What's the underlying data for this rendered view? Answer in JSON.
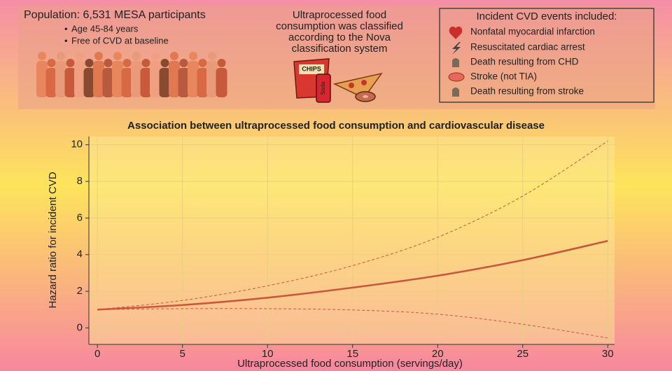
{
  "header": {
    "population": {
      "title": "Population: 6,531 MESA participants",
      "bullets": [
        "Age 45-84 years",
        "Free of CVD at baseline"
      ]
    },
    "classification": {
      "lines": [
        "Ultraprocessed food",
        "consumption was classified",
        "according to the Nova",
        "classification system"
      ]
    },
    "illustration_labels": [
      "CHIPS",
      "Soda"
    ],
    "events": {
      "title": "Incident CVD events included:",
      "items": [
        "Nonfatal myocardial infarction",
        "Resuscitated cardiac arrest",
        "Death resulting from CHD",
        "Stroke (not TIA)",
        "Death resulting from stroke"
      ]
    }
  },
  "chart_data": {
    "type": "line",
    "title": "Association between ultraprocessed food consumption and cardiovascular disease",
    "x_label": "Ultraprocessed food consumption (servings/day)",
    "y_label": "Hazard ratio for incident CVD",
    "x": [
      0,
      5,
      10,
      15,
      20,
      25,
      30
    ],
    "series": [
      {
        "color": "#c9573f",
        "style": "solid",
        "values": [
          1.0,
          1.25,
          1.65,
          2.2,
          2.85,
          3.7,
          4.75
        ]
      },
      {
        "color": "#c9573f",
        "style": "dashed",
        "values": [
          1.0,
          1.5,
          2.3,
          3.4,
          4.95,
          7.2,
          10.2
        ]
      },
      {
        "color": "#c9573f",
        "style": "dashed",
        "values": [
          1.0,
          1.05,
          1.05,
          0.98,
          0.75,
          0.2,
          -0.55
        ]
      }
    ],
    "xlim": [
      -0.5,
      30.4
    ],
    "ylim": [
      -0.9,
      10.45
    ],
    "xticks": [
      0,
      5,
      10,
      15,
      20,
      25,
      30
    ],
    "yticks": [
      0,
      2,
      4,
      6,
      8,
      10
    ],
    "grid": true
  }
}
